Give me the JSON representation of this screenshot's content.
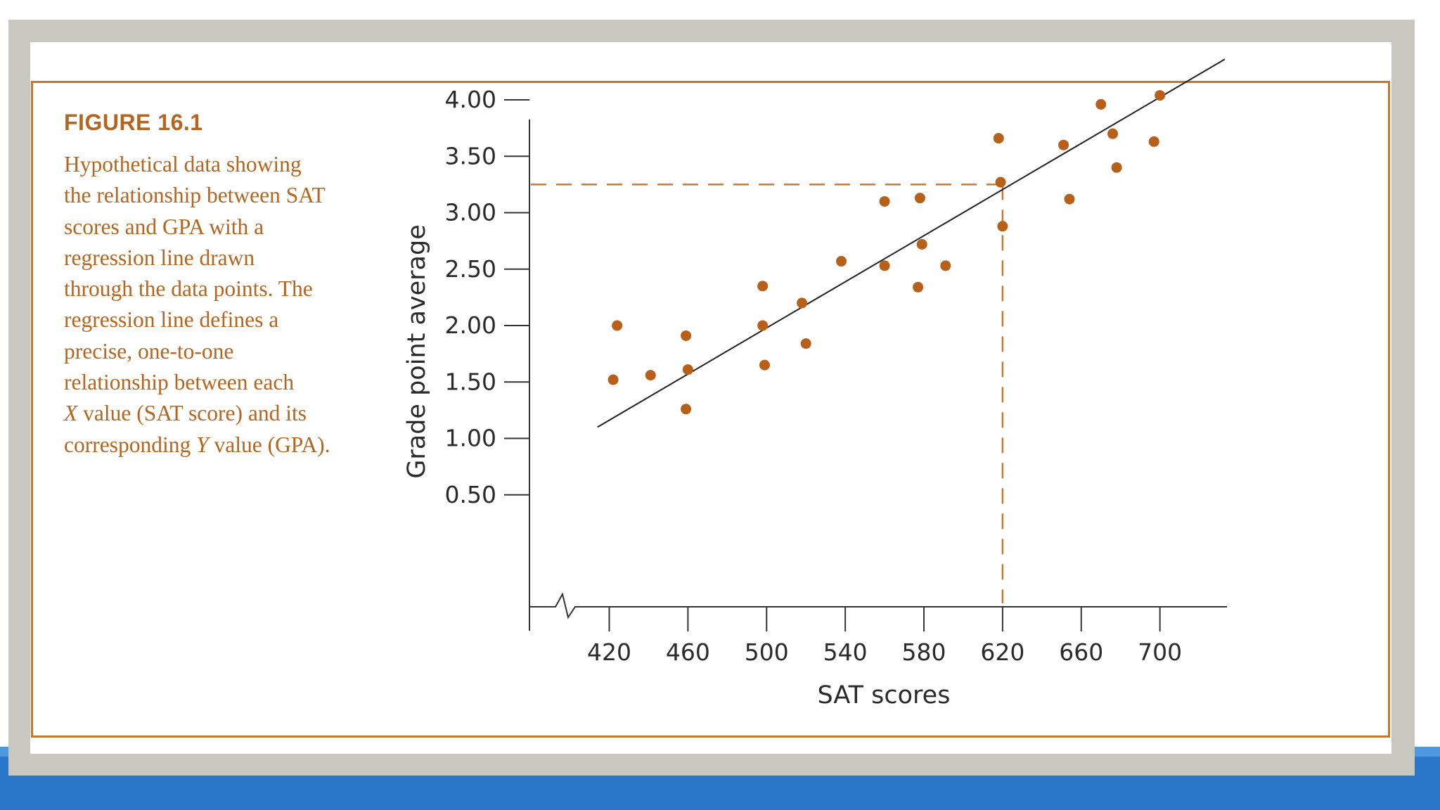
{
  "figure": {
    "label": "FIGURE 16.1",
    "caption_lines": [
      {
        "id": "l1",
        "text": "Hypothetical data showing"
      },
      {
        "id": "l2",
        "text": "the relationship between SAT"
      },
      {
        "id": "l3",
        "text": "scores and GPA with a"
      },
      {
        "id": "l4",
        "text": "regression line drawn"
      },
      {
        "id": "l5",
        "text": "through the data points. The"
      },
      {
        "id": "l6",
        "text": "regression line defines a"
      },
      {
        "id": "l7",
        "text": "precise, one-to-one"
      },
      {
        "id": "l8",
        "text": "relationship between each"
      },
      {
        "id": "l9a",
        "text": "X",
        "italic": true
      },
      {
        "id": "l9b",
        "text": " value (SAT score) and its"
      },
      {
        "id": "l10a",
        "text": "corresponding "
      },
      {
        "id": "l10b",
        "text": "Y",
        "italic": true
      },
      {
        "id": "l10c",
        "text": " value (GPA)."
      }
    ]
  },
  "colors": {
    "accent": "#c47a2c",
    "text_accent": "#b5651d",
    "points": "#b8601a",
    "axis": "#333333",
    "frame": "#c8c8c0",
    "band": "#2a77c9"
  },
  "chart_data": {
    "type": "scatter",
    "title": "",
    "xlabel": "SAT scores",
    "ylabel": "Grade point average",
    "x_ticks": [
      420,
      460,
      500,
      540,
      580,
      620,
      660,
      700
    ],
    "x_tick_labels": [
      "420",
      "460",
      "500",
      "540",
      "580",
      "620",
      "660",
      "700"
    ],
    "y_ticks": [
      0.5,
      1.0,
      1.5,
      2.0,
      2.5,
      3.0,
      3.5,
      4.0
    ],
    "y_tick_labels": [
      "0.50",
      "1.00",
      "1.50",
      "2.00",
      "2.50",
      "3.00",
      "3.50",
      "4.00"
    ],
    "xlim": [
      380,
      735
    ],
    "ylim": [
      0,
      4.35
    ],
    "axis_break": true,
    "grid": false,
    "legend": "none",
    "points": [
      {
        "x": 424,
        "y": 2.0
      },
      {
        "x": 422,
        "y": 1.52
      },
      {
        "x": 441,
        "y": 1.56
      },
      {
        "x": 459,
        "y": 1.91
      },
      {
        "x": 460,
        "y": 1.61
      },
      {
        "x": 459,
        "y": 1.26
      },
      {
        "x": 498,
        "y": 2.35
      },
      {
        "x": 498,
        "y": 2.0
      },
      {
        "x": 499,
        "y": 1.65
      },
      {
        "x": 518,
        "y": 2.2
      },
      {
        "x": 520,
        "y": 1.84
      },
      {
        "x": 538,
        "y": 2.57
      },
      {
        "x": 560,
        "y": 3.1
      },
      {
        "x": 560,
        "y": 2.53
      },
      {
        "x": 578,
        "y": 3.13
      },
      {
        "x": 579,
        "y": 2.72
      },
      {
        "x": 577,
        "y": 2.34
      },
      {
        "x": 591,
        "y": 2.53
      },
      {
        "x": 618,
        "y": 3.66
      },
      {
        "x": 619,
        "y": 3.27
      },
      {
        "x": 620,
        "y": 2.88
      },
      {
        "x": 651,
        "y": 3.6
      },
      {
        "x": 654,
        "y": 3.12
      },
      {
        "x": 670,
        "y": 3.96
      },
      {
        "x": 676,
        "y": 3.7
      },
      {
        "x": 678,
        "y": 3.4
      },
      {
        "x": 697,
        "y": 3.63
      },
      {
        "x": 700,
        "y": 4.04
      }
    ],
    "regression_line": {
      "x": [
        414,
        733
      ],
      "y": [
        1.1,
        4.36
      ]
    },
    "reference_point": {
      "x": 620,
      "y": 3.25
    }
  }
}
